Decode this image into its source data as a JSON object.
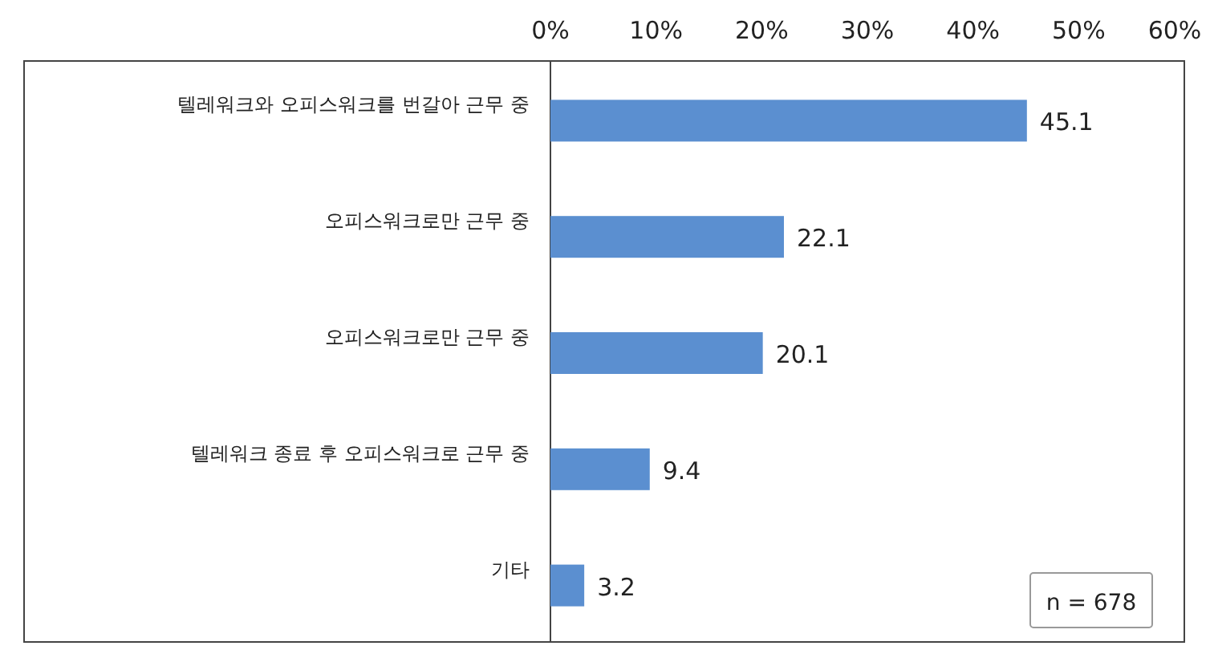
{
  "chart_data": {
    "type": "bar",
    "orientation": "horizontal",
    "categories": [
      "텔레워크와 오피스워크를 번갈아 근무 중",
      "오피스워크로만 근무 중",
      "오피스워크로만 근무 중",
      "텔레워크 종료 후 오피스워크로 근무 중",
      "기타"
    ],
    "values": [
      45.1,
      22.1,
      20.1,
      9.4,
      3.2
    ],
    "color": "#5b8fd0",
    "xlim": [
      0,
      60
    ],
    "xticks": [
      {
        "value": 0,
        "label": "0%"
      },
      {
        "value": 10,
        "label": "10%"
      },
      {
        "value": 20,
        "label": "20%"
      },
      {
        "value": 30,
        "label": "30%"
      },
      {
        "value": 40,
        "label": "40%"
      },
      {
        "value": 50,
        "label": "50%"
      },
      {
        "value": 60,
        "label": "60%"
      }
    ],
    "data_labels": true,
    "grid": false,
    "annotations": [
      "n = 678"
    ]
  }
}
